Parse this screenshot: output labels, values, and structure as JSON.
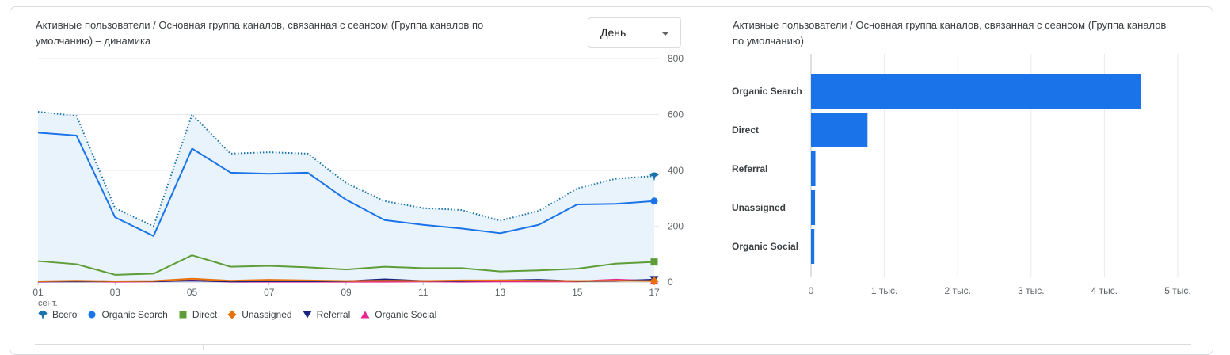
{
  "line_chart": {
    "title": "Активные пользователи / Основная группа каналов, связанная с сеансом (Группа каналов по умолчанию) – динамика",
    "period_select": "День"
  },
  "bar_chart": {
    "title": "Активные пользователи / Основная группа каналов, связанная с сеансом (Группа каналов по умолчанию)"
  },
  "legend": [
    {
      "label": "Всего",
      "color": "#1a73a8",
      "icon": "pin"
    },
    {
      "label": "Organic Search",
      "color": "#1a73e8",
      "icon": "circle"
    },
    {
      "label": "Direct",
      "color": "#5e9d37",
      "icon": "square"
    },
    {
      "label": "Unassigned",
      "color": "#e8710a",
      "icon": "diamond"
    },
    {
      "label": "Referral",
      "color": "#1a237e",
      "icon": "triangle-down"
    },
    {
      "label": "Organic Social",
      "color": "#e52592",
      "icon": "triangle-up"
    }
  ],
  "chart_data": [
    {
      "type": "line",
      "x": [
        "01",
        "02",
        "03",
        "04",
        "05",
        "06",
        "07",
        "08",
        "09",
        "10",
        "11",
        "12",
        "13",
        "14",
        "15",
        "16",
        "17"
      ],
      "x_tick_labels": [
        "01",
        "03",
        "05",
        "07",
        "09",
        "11",
        "13",
        "15",
        "17"
      ],
      "x_sub_label": "сент.",
      "ylim": [
        0,
        800
      ],
      "y_ticks": [
        "800",
        "600",
        "400",
        "200",
        "0"
      ],
      "y_tick_values": [
        800,
        600,
        400,
        200,
        0
      ],
      "grid": true,
      "series": [
        {
          "name": "Всего",
          "color": "#1a73a8",
          "style": "dotted",
          "area": true,
          "values": [
            610,
            595,
            265,
            200,
            600,
            460,
            465,
            460,
            355,
            290,
            265,
            258,
            220,
            255,
            335,
            370,
            380
          ]
        },
        {
          "name": "Organic Search",
          "color": "#1a73e8",
          "style": "solid",
          "values": [
            535,
            525,
            232,
            165,
            478,
            392,
            388,
            392,
            295,
            222,
            205,
            192,
            175,
            205,
            278,
            280,
            290
          ]
        },
        {
          "name": "Direct",
          "color": "#5e9d37",
          "style": "solid",
          "values": [
            75,
            64,
            26,
            30,
            96,
            55,
            58,
            53,
            45,
            55,
            50,
            50,
            38,
            42,
            48,
            66,
            72
          ]
        },
        {
          "name": "Unassigned",
          "color": "#e8710a",
          "style": "solid",
          "values": [
            3,
            5,
            3,
            4,
            12,
            5,
            8,
            6,
            4,
            5,
            4,
            6,
            6,
            5,
            4,
            5,
            4
          ]
        },
        {
          "name": "Referral",
          "color": "#1a237e",
          "style": "solid",
          "values": [
            2,
            2,
            3,
            3,
            5,
            2,
            3,
            3,
            3,
            10,
            4,
            4,
            6,
            8,
            3,
            4,
            9
          ]
        },
        {
          "name": "Organic Social",
          "color": "#e52592",
          "style": "solid",
          "values": [
            1,
            3,
            1,
            2,
            6,
            1,
            1,
            1,
            1,
            1,
            2,
            1,
            2,
            2,
            2,
            9,
            4
          ]
        }
      ]
    },
    {
      "type": "bar",
      "orientation": "horizontal",
      "categories": [
        "Organic Search",
        "Direct",
        "Referral",
        "Unassigned",
        "Organic Social"
      ],
      "values": [
        4500,
        770,
        60,
        55,
        45
      ],
      "xlim": [
        0,
        5000
      ],
      "x_ticks": [
        "0",
        "1 тыс.",
        "2 тыс.",
        "3 тыс.",
        "4 тыс.",
        "5 тыс."
      ],
      "x_tick_values": [
        0,
        1000,
        2000,
        3000,
        4000,
        5000
      ],
      "color": "#1a73e8",
      "grid": true
    }
  ]
}
